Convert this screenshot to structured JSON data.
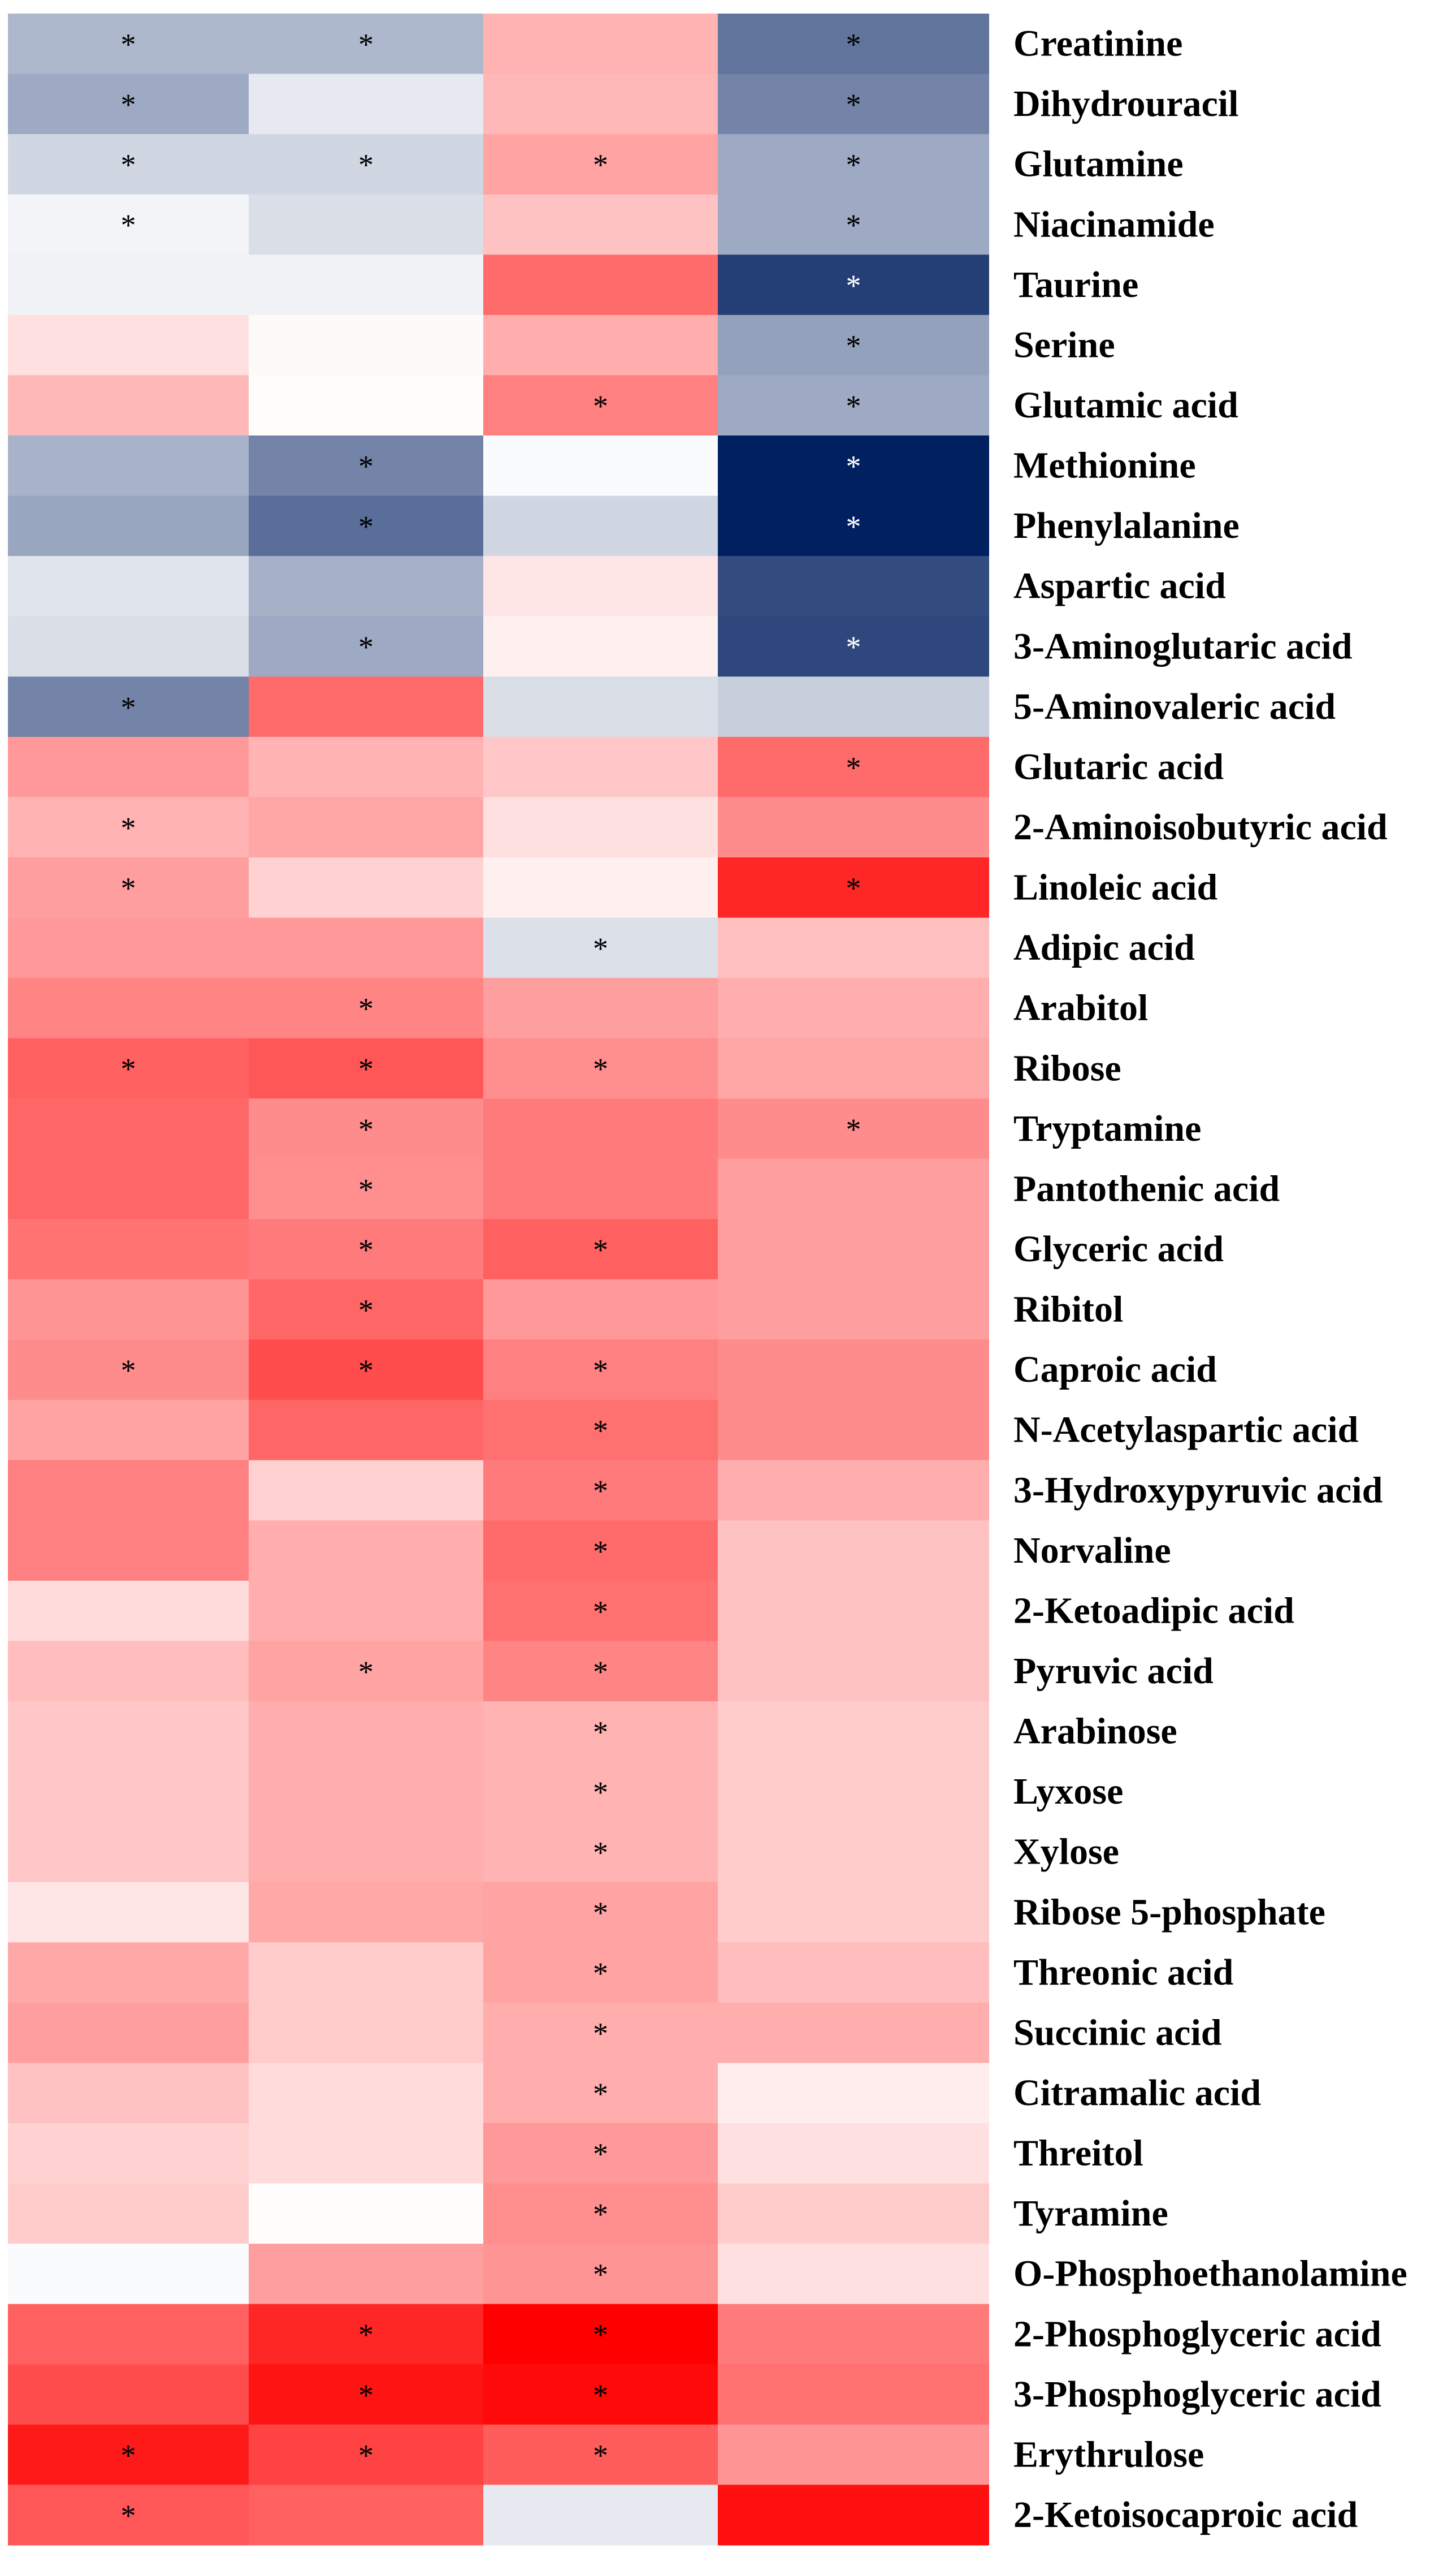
{
  "chart_data": {
    "type": "heatmap",
    "title": "",
    "xlabel": "",
    "ylabel": "",
    "color_scale": {
      "low": "#002060",
      "mid": "#ffffff",
      "high": "#ff0000",
      "range": [
        -1,
        1
      ]
    },
    "significance_marker": "*",
    "rows": [
      {
        "label": "Creatinine",
        "values": [
          -0.32,
          -0.32,
          0.3,
          -0.62
        ],
        "significant": [
          true,
          true,
          false,
          true
        ]
      },
      {
        "label": "Dihydrouracil",
        "values": [
          -0.38,
          -0.1,
          0.28,
          -0.55
        ],
        "significant": [
          true,
          false,
          false,
          true
        ]
      },
      {
        "label": "Glutamine",
        "values": [
          -0.18,
          -0.18,
          0.36,
          -0.38
        ],
        "significant": [
          true,
          true,
          true,
          true
        ]
      },
      {
        "label": "Niacinamide",
        "values": [
          -0.05,
          -0.15,
          0.24,
          -0.38
        ],
        "significant": [
          true,
          false,
          false,
          true
        ]
      },
      {
        "label": "Taurine",
        "values": [
          -0.06,
          -0.06,
          0.58,
          -0.86
        ],
        "significant": [
          false,
          false,
          false,
          true
        ]
      },
      {
        "label": "Serine",
        "values": [
          0.12,
          0.02,
          0.32,
          -0.42
        ],
        "significant": [
          false,
          false,
          false,
          true
        ]
      },
      {
        "label": "Glutamic acid",
        "values": [
          0.28,
          0.01,
          0.5,
          -0.38
        ],
        "significant": [
          false,
          false,
          true,
          true
        ]
      },
      {
        "label": "Methionine",
        "values": [
          -0.34,
          -0.55,
          -0.02,
          -1.0
        ],
        "significant": [
          false,
          true,
          false,
          true
        ]
      },
      {
        "label": "Phenylalanine",
        "values": [
          -0.4,
          -0.65,
          -0.18,
          -1.0
        ],
        "significant": [
          false,
          true,
          false,
          true
        ]
      },
      {
        "label": "Aspartic acid",
        "values": [
          -0.12,
          -0.35,
          0.1,
          -0.8
        ],
        "significant": [
          false,
          false,
          false,
          false
        ]
      },
      {
        "label": "3-Aminoglutaric acid",
        "values": [
          -0.15,
          -0.38,
          0.06,
          -0.82
        ],
        "significant": [
          false,
          true,
          false,
          true
        ]
      },
      {
        "label": "5-Aminovaleric acid",
        "values": [
          -0.55,
          0.58,
          -0.15,
          -0.22
        ],
        "significant": [
          true,
          false,
          false,
          false
        ]
      },
      {
        "label": "Glutaric acid",
        "values": [
          0.4,
          0.3,
          0.22,
          0.58
        ],
        "significant": [
          false,
          false,
          false,
          true
        ]
      },
      {
        "label": "2-Aminoisobutyric acid",
        "values": [
          0.3,
          0.35,
          0.12,
          0.45
        ],
        "significant": [
          true,
          false,
          false,
          false
        ]
      },
      {
        "label": "Linoleic acid",
        "values": [
          0.38,
          0.18,
          0.06,
          0.85
        ],
        "significant": [
          true,
          false,
          false,
          true
        ]
      },
      {
        "label": "Adipic acid",
        "values": [
          0.4,
          0.4,
          -0.14,
          0.25
        ],
        "significant": [
          false,
          false,
          true,
          false
        ]
      },
      {
        "label": "Arabitol",
        "values": [
          0.48,
          0.48,
          0.38,
          0.32
        ],
        "significant": [
          false,
          true,
          false,
          false
        ]
      },
      {
        "label": "Ribose",
        "values": [
          0.62,
          0.66,
          0.44,
          0.35
        ],
        "significant": [
          true,
          true,
          true,
          false
        ]
      },
      {
        "label": "Tryptamine",
        "values": [
          0.6,
          0.45,
          0.52,
          0.45
        ],
        "significant": [
          false,
          true,
          false,
          true
        ]
      },
      {
        "label": "Pantothenic acid",
        "values": [
          0.6,
          0.44,
          0.52,
          0.38
        ],
        "significant": [
          false,
          true,
          false,
          false
        ]
      },
      {
        "label": "Glyceric acid",
        "values": [
          0.55,
          0.52,
          0.62,
          0.38
        ],
        "significant": [
          false,
          true,
          true,
          false
        ]
      },
      {
        "label": "Ribitol",
        "values": [
          0.42,
          0.6,
          0.4,
          0.38
        ],
        "significant": [
          false,
          true,
          false,
          false
        ]
      },
      {
        "label": "Caproic acid",
        "values": [
          0.45,
          0.7,
          0.5,
          0.45
        ],
        "significant": [
          true,
          true,
          true,
          false
        ]
      },
      {
        "label": "N-Acetylaspartic acid",
        "values": [
          0.36,
          0.6,
          0.56,
          0.45
        ],
        "significant": [
          false,
          false,
          true,
          false
        ]
      },
      {
        "label": "3-Hydroxypyruvic acid",
        "values": [
          0.5,
          0.18,
          0.52,
          0.32
        ],
        "significant": [
          false,
          false,
          true,
          false
        ]
      },
      {
        "label": "Norvaline",
        "values": [
          0.5,
          0.32,
          0.58,
          0.24
        ],
        "significant": [
          false,
          false,
          true,
          false
        ]
      },
      {
        "label": "2-Ketoadipic acid",
        "values": [
          0.14,
          0.32,
          0.56,
          0.24
        ],
        "significant": [
          false,
          false,
          true,
          false
        ]
      },
      {
        "label": "Pyruvic acid",
        "values": [
          0.26,
          0.36,
          0.48,
          0.24
        ],
        "significant": [
          false,
          true,
          true,
          false
        ]
      },
      {
        "label": "Arabinose",
        "values": [
          0.22,
          0.32,
          0.3,
          0.2
        ],
        "significant": [
          false,
          false,
          true,
          false
        ]
      },
      {
        "label": "Lyxose",
        "values": [
          0.22,
          0.32,
          0.3,
          0.2
        ],
        "significant": [
          false,
          false,
          true,
          false
        ]
      },
      {
        "label": "Xylose",
        "values": [
          0.22,
          0.32,
          0.3,
          0.2
        ],
        "significant": [
          false,
          false,
          true,
          false
        ]
      },
      {
        "label": "Ribose 5-phosphate",
        "values": [
          0.1,
          0.34,
          0.36,
          0.2
        ],
        "significant": [
          false,
          false,
          true,
          false
        ]
      },
      {
        "label": "Threonic acid",
        "values": [
          0.34,
          0.2,
          0.36,
          0.26
        ],
        "significant": [
          false,
          false,
          true,
          false
        ]
      },
      {
        "label": "Succinic acid",
        "values": [
          0.38,
          0.2,
          0.32,
          0.32
        ],
        "significant": [
          false,
          false,
          true,
          false
        ]
      },
      {
        "label": "Citramalic acid",
        "values": [
          0.24,
          0.14,
          0.32,
          0.07
        ],
        "significant": [
          false,
          false,
          true,
          false
        ]
      },
      {
        "label": "Threitol",
        "values": [
          0.18,
          0.14,
          0.4,
          0.12
        ],
        "significant": [
          false,
          false,
          true,
          false
        ]
      },
      {
        "label": "Tyramine",
        "values": [
          0.2,
          0.01,
          0.44,
          0.2
        ],
        "significant": [
          false,
          false,
          true,
          false
        ]
      },
      {
        "label": "O-Phosphoethanolamine",
        "values": [
          -0.02,
          0.38,
          0.42,
          0.12
        ],
        "significant": [
          false,
          false,
          true,
          false
        ]
      },
      {
        "label": "2-Phosphoglyceric acid",
        "values": [
          0.62,
          0.85,
          1.0,
          0.52
        ],
        "significant": [
          false,
          true,
          true,
          false
        ]
      },
      {
        "label": "3-Phosphoglyceric acid",
        "values": [
          0.7,
          0.92,
          0.96,
          0.56
        ],
        "significant": [
          false,
          true,
          true,
          false
        ]
      },
      {
        "label": "Erythrulose",
        "values": [
          0.9,
          0.74,
          0.64,
          0.42
        ],
        "significant": [
          true,
          true,
          true,
          false
        ]
      },
      {
        "label": "2-Ketoisocaproic acid",
        "values": [
          0.66,
          0.62,
          -0.1,
          0.94
        ],
        "significant": [
          true,
          false,
          false,
          false
        ]
      }
    ]
  }
}
